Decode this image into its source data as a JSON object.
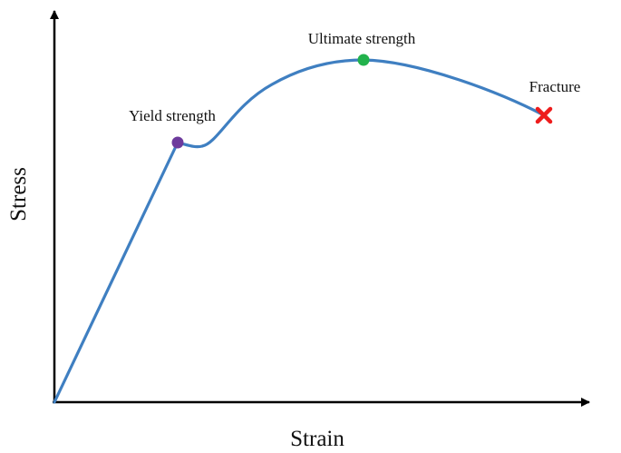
{
  "axes": {
    "x_label": "Strain",
    "y_label": "Stress"
  },
  "labels": {
    "yield": "Yield strength",
    "ultimate": "Ultimate strength",
    "fracture": "Fracture"
  },
  "colors": {
    "curve": "#3f7fc1",
    "axis": "#000000",
    "yield_marker": "#6d3a9c",
    "ultimate_marker": "#22b24c",
    "fracture_marker": "#ee1c1c"
  }
}
